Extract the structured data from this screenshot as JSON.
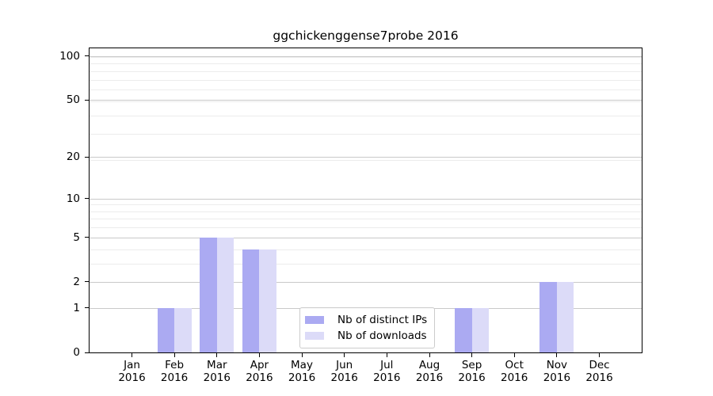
{
  "title": "ggchickenggense7probe 2016",
  "chart_data": {
    "type": "bar",
    "title": "ggchickenggense7probe 2016",
    "x_categories": [
      "Jan 2016",
      "Feb 2016",
      "Mar 2016",
      "Apr 2016",
      "May 2016",
      "Jun 2016",
      "Jul 2016",
      "Aug 2016",
      "Sep 2016",
      "Oct 2016",
      "Nov 2016",
      "Dec 2016"
    ],
    "months": [
      "Jan",
      "Feb",
      "Mar",
      "Apr",
      "May",
      "Jun",
      "Jul",
      "Aug",
      "Sep",
      "Oct",
      "Nov",
      "Dec"
    ],
    "year": "2016",
    "series": [
      {
        "name": "Nb of distinct IPs",
        "color": "#abaaf2",
        "values": [
          0,
          1,
          5,
          4,
          0,
          0,
          0,
          0,
          1,
          0,
          2,
          0
        ]
      },
      {
        "name": "Nb of downloads",
        "color": "#dcdbf8",
        "values": [
          0,
          1,
          5,
          4,
          0,
          0,
          0,
          0,
          1,
          0,
          2,
          0
        ]
      }
    ],
    "y_ticks": [
      0,
      1,
      2,
      5,
      10,
      20,
      50,
      100
    ],
    "y_scale": "log10(1+v)",
    "y_top_value": 113,
    "minor_grid_values": [
      3,
      4,
      6,
      7,
      8,
      9,
      19,
      29,
      39,
      49,
      59,
      69,
      79,
      89,
      99
    ],
    "grid": true,
    "legend_position": "inside-bottom-center",
    "colors": {
      "axis": "#000000",
      "grid_major": "#c9c9c9",
      "grid_minor": "#ececec",
      "legend_border": "#cccccc",
      "background": "#ffffff",
      "text": "#000000"
    }
  }
}
